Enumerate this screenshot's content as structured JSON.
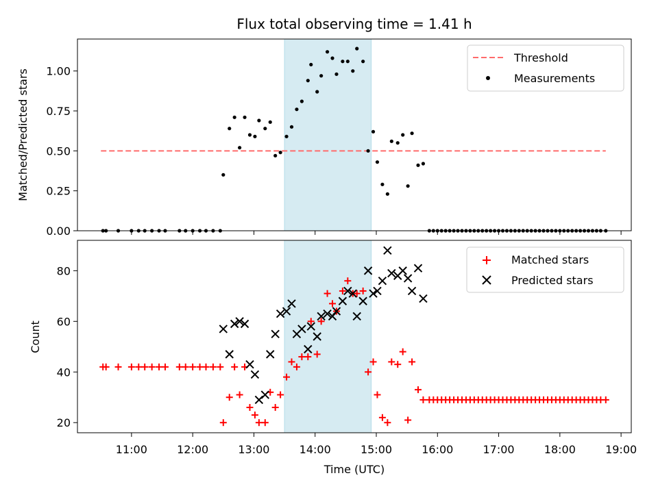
{
  "chart_data": [
    {
      "type": "scatter",
      "title": "Flux total observing time = 1.41 h",
      "xlabel": "",
      "ylabel": "Matched/Predicted stars",
      "ylim": [
        0,
        1.2
      ],
      "yticks": [
        0.0,
        0.25,
        0.5,
        0.75,
        1.0
      ],
      "ytick_labels": [
        "0.00",
        "0.25",
        "0.50",
        "0.75",
        "1.00"
      ],
      "grid": false,
      "legend": "upper-right",
      "highlight_span": {
        "from": "13:30",
        "to": "14:55",
        "color": "#add8e6"
      },
      "threshold": {
        "name": "Threshold",
        "value": 0.5,
        "from": "10:30",
        "to": "18:45",
        "color": "#ff6b6b"
      },
      "series": [
        {
          "name": "Measurements",
          "color": "#000000",
          "marker": "dot",
          "points": [
            [
              "10:32",
              0
            ],
            [
              "10:35",
              0
            ],
            [
              "10:47",
              0
            ],
            [
              "11:00",
              0
            ],
            [
              "11:07",
              0
            ],
            [
              "11:13",
              0
            ],
            [
              "11:20",
              0
            ],
            [
              "11:27",
              0
            ],
            [
              "11:33",
              0
            ],
            [
              "11:47",
              0
            ],
            [
              "11:53",
              0
            ],
            [
              "12:00",
              0
            ],
            [
              "12:07",
              0
            ],
            [
              "12:13",
              0
            ],
            [
              "12:20",
              0
            ],
            [
              "12:27",
              0
            ],
            [
              "12:30",
              0.35
            ],
            [
              "12:36",
              0.64
            ],
            [
              "12:41",
              0.71
            ],
            [
              "12:46",
              0.52
            ],
            [
              "12:51",
              0.71
            ],
            [
              "12:56",
              0.6
            ],
            [
              "13:01",
              0.59
            ],
            [
              "13:05",
              0.69
            ],
            [
              "13:11",
              0.64
            ],
            [
              "13:16",
              0.68
            ],
            [
              "13:21",
              0.47
            ],
            [
              "13:26",
              0.49
            ],
            [
              "13:32",
              0.59
            ],
            [
              "13:37",
              0.65
            ],
            [
              "13:42",
              0.76
            ],
            [
              "13:47",
              0.81
            ],
            [
              "13:53",
              0.94
            ],
            [
              "13:56",
              1.04
            ],
            [
              "14:02",
              0.87
            ],
            [
              "14:06",
              0.97
            ],
            [
              "14:12",
              1.12
            ],
            [
              "14:17",
              1.08
            ],
            [
              "14:21",
              0.98
            ],
            [
              "14:27",
              1.06
            ],
            [
              "14:32",
              1.06
            ],
            [
              "14:37",
              1.0
            ],
            [
              "14:41",
              1.14
            ],
            [
              "14:47",
              1.06
            ],
            [
              "14:52",
              0.5
            ],
            [
              "14:57",
              0.62
            ],
            [
              "15:01",
              0.43
            ],
            [
              "15:06",
              0.29
            ],
            [
              "15:11",
              0.23
            ],
            [
              "15:15",
              0.56
            ],
            [
              "15:21",
              0.55
            ],
            [
              "15:26",
              0.6
            ],
            [
              "15:31",
              0.28
            ],
            [
              "15:35",
              0.61
            ],
            [
              "15:41",
              0.41
            ],
            [
              "15:46",
              0.42
            ],
            [
              "15:52",
              0
            ],
            [
              "15:56",
              0
            ],
            [
              "16:00",
              0
            ],
            [
              "16:04",
              0
            ],
            [
              "16:08",
              0
            ],
            [
              "16:12",
              0
            ],
            [
              "16:16",
              0
            ],
            [
              "16:20",
              0
            ],
            [
              "16:24",
              0
            ],
            [
              "16:28",
              0
            ],
            [
              "16:32",
              0
            ],
            [
              "16:36",
              0
            ],
            [
              "16:40",
              0
            ],
            [
              "16:44",
              0
            ],
            [
              "16:48",
              0
            ],
            [
              "16:52",
              0
            ],
            [
              "16:56",
              0
            ],
            [
              "17:00",
              0
            ],
            [
              "17:04",
              0
            ],
            [
              "17:08",
              0
            ],
            [
              "17:12",
              0
            ],
            [
              "17:16",
              0
            ],
            [
              "17:20",
              0
            ],
            [
              "17:24",
              0
            ],
            [
              "17:28",
              0
            ],
            [
              "17:32",
              0
            ],
            [
              "17:36",
              0
            ],
            [
              "17:40",
              0
            ],
            [
              "17:44",
              0
            ],
            [
              "17:48",
              0
            ],
            [
              "17:52",
              0
            ],
            [
              "17:56",
              0
            ],
            [
              "18:00",
              0
            ],
            [
              "18:04",
              0
            ],
            [
              "18:08",
              0
            ],
            [
              "18:12",
              0
            ],
            [
              "18:16",
              0
            ],
            [
              "18:20",
              0
            ],
            [
              "18:24",
              0
            ],
            [
              "18:28",
              0
            ],
            [
              "18:32",
              0
            ],
            [
              "18:36",
              0
            ],
            [
              "18:40",
              0
            ],
            [
              "18:45",
              0
            ]
          ]
        }
      ]
    },
    {
      "type": "scatter",
      "title": "",
      "xlabel": "Time (UTC)",
      "ylabel": "Count",
      "xlim": [
        "10:07",
        "19:10"
      ],
      "xticks": [
        "11:00",
        "12:00",
        "13:00",
        "14:00",
        "15:00",
        "16:00",
        "17:00",
        "18:00",
        "19:00"
      ],
      "ylim": [
        16,
        92
      ],
      "yticks": [
        20,
        40,
        60,
        80
      ],
      "ytick_labels": [
        "20",
        "40",
        "60",
        "80"
      ],
      "grid": false,
      "legend": "upper-right",
      "highlight_span": {
        "from": "13:30",
        "to": "14:55",
        "color": "#add8e6"
      },
      "series": [
        {
          "name": "Matched stars",
          "color": "#ff0000",
          "marker": "plus",
          "points": [
            [
              "10:32",
              42
            ],
            [
              "10:35",
              42
            ],
            [
              "10:47",
              42
            ],
            [
              "11:00",
              42
            ],
            [
              "11:07",
              42
            ],
            [
              "11:13",
              42
            ],
            [
              "11:20",
              42
            ],
            [
              "11:27",
              42
            ],
            [
              "11:33",
              42
            ],
            [
              "11:47",
              42
            ],
            [
              "11:53",
              42
            ],
            [
              "12:00",
              42
            ],
            [
              "12:07",
              42
            ],
            [
              "12:13",
              42
            ],
            [
              "12:20",
              42
            ],
            [
              "12:27",
              42
            ],
            [
              "12:30",
              20
            ],
            [
              "12:36",
              30
            ],
            [
              "12:41",
              42
            ],
            [
              "12:46",
              31
            ],
            [
              "12:51",
              42
            ],
            [
              "12:56",
              26
            ],
            [
              "13:01",
              23
            ],
            [
              "13:05",
              20
            ],
            [
              "13:11",
              20
            ],
            [
              "13:16",
              32
            ],
            [
              "13:21",
              26
            ],
            [
              "13:26",
              31
            ],
            [
              "13:32",
              38
            ],
            [
              "13:37",
              44
            ],
            [
              "13:42",
              42
            ],
            [
              "13:47",
              46
            ],
            [
              "13:53",
              46
            ],
            [
              "13:56",
              60
            ],
            [
              "14:02",
              47
            ],
            [
              "14:06",
              60
            ],
            [
              "14:12",
              71
            ],
            [
              "14:17",
              67
            ],
            [
              "14:21",
              64
            ],
            [
              "14:27",
              72
            ],
            [
              "14:32",
              76
            ],
            [
              "14:37",
              71
            ],
            [
              "14:41",
              71
            ],
            [
              "14:47",
              72
            ],
            [
              "14:52",
              40
            ],
            [
              "14:57",
              44
            ],
            [
              "15:01",
              31
            ],
            [
              "15:06",
              22
            ],
            [
              "15:11",
              20
            ],
            [
              "15:15",
              44
            ],
            [
              "15:21",
              43
            ],
            [
              "15:26",
              48
            ],
            [
              "15:31",
              21
            ],
            [
              "15:35",
              44
            ],
            [
              "15:41",
              33
            ],
            [
              "15:46",
              29
            ],
            [
              "15:52",
              29
            ],
            [
              "15:56",
              29
            ],
            [
              "16:00",
              29
            ],
            [
              "16:04",
              29
            ],
            [
              "16:08",
              29
            ],
            [
              "16:12",
              29
            ],
            [
              "16:16",
              29
            ],
            [
              "16:20",
              29
            ],
            [
              "16:24",
              29
            ],
            [
              "16:28",
              29
            ],
            [
              "16:32",
              29
            ],
            [
              "16:36",
              29
            ],
            [
              "16:40",
              29
            ],
            [
              "16:44",
              29
            ],
            [
              "16:48",
              29
            ],
            [
              "16:52",
              29
            ],
            [
              "16:56",
              29
            ],
            [
              "17:00",
              29
            ],
            [
              "17:04",
              29
            ],
            [
              "17:08",
              29
            ],
            [
              "17:12",
              29
            ],
            [
              "17:16",
              29
            ],
            [
              "17:20",
              29
            ],
            [
              "17:24",
              29
            ],
            [
              "17:28",
              29
            ],
            [
              "17:32",
              29
            ],
            [
              "17:36",
              29
            ],
            [
              "17:40",
              29
            ],
            [
              "17:44",
              29
            ],
            [
              "17:48",
              29
            ],
            [
              "17:52",
              29
            ],
            [
              "17:56",
              29
            ],
            [
              "18:00",
              29
            ],
            [
              "18:04",
              29
            ],
            [
              "18:08",
              29
            ],
            [
              "18:12",
              29
            ],
            [
              "18:16",
              29
            ],
            [
              "18:20",
              29
            ],
            [
              "18:24",
              29
            ],
            [
              "18:28",
              29
            ],
            [
              "18:32",
              29
            ],
            [
              "18:36",
              29
            ],
            [
              "18:40",
              29
            ],
            [
              "18:45",
              29
            ]
          ]
        },
        {
          "name": "Predicted stars",
          "color": "#000000",
          "marker": "x",
          "points": [
            [
              "12:30",
              57
            ],
            [
              "12:36",
              47
            ],
            [
              "12:41",
              59
            ],
            [
              "12:46",
              60
            ],
            [
              "12:51",
              59
            ],
            [
              "12:56",
              43
            ],
            [
              "13:01",
              39
            ],
            [
              "13:05",
              29
            ],
            [
              "13:11",
              31
            ],
            [
              "13:16",
              47
            ],
            [
              "13:21",
              55
            ],
            [
              "13:26",
              63
            ],
            [
              "13:32",
              64
            ],
            [
              "13:37",
              67
            ],
            [
              "13:42",
              55
            ],
            [
              "13:47",
              57
            ],
            [
              "13:53",
              49
            ],
            [
              "13:56",
              58
            ],
            [
              "14:02",
              54
            ],
            [
              "14:06",
              62
            ],
            [
              "14:12",
              63
            ],
            [
              "14:17",
              62
            ],
            [
              "14:21",
              64
            ],
            [
              "14:27",
              68
            ],
            [
              "14:32",
              72
            ],
            [
              "14:37",
              71
            ],
            [
              "14:41",
              62
            ],
            [
              "14:47",
              68
            ],
            [
              "14:52",
              80
            ],
            [
              "14:57",
              71
            ],
            [
              "15:01",
              72
            ],
            [
              "15:06",
              76
            ],
            [
              "15:11",
              88
            ],
            [
              "15:15",
              79
            ],
            [
              "15:21",
              78
            ],
            [
              "15:26",
              80
            ],
            [
              "15:31",
              77
            ],
            [
              "15:35",
              72
            ],
            [
              "15:41",
              81
            ],
            [
              "15:46",
              69
            ]
          ]
        }
      ]
    }
  ]
}
